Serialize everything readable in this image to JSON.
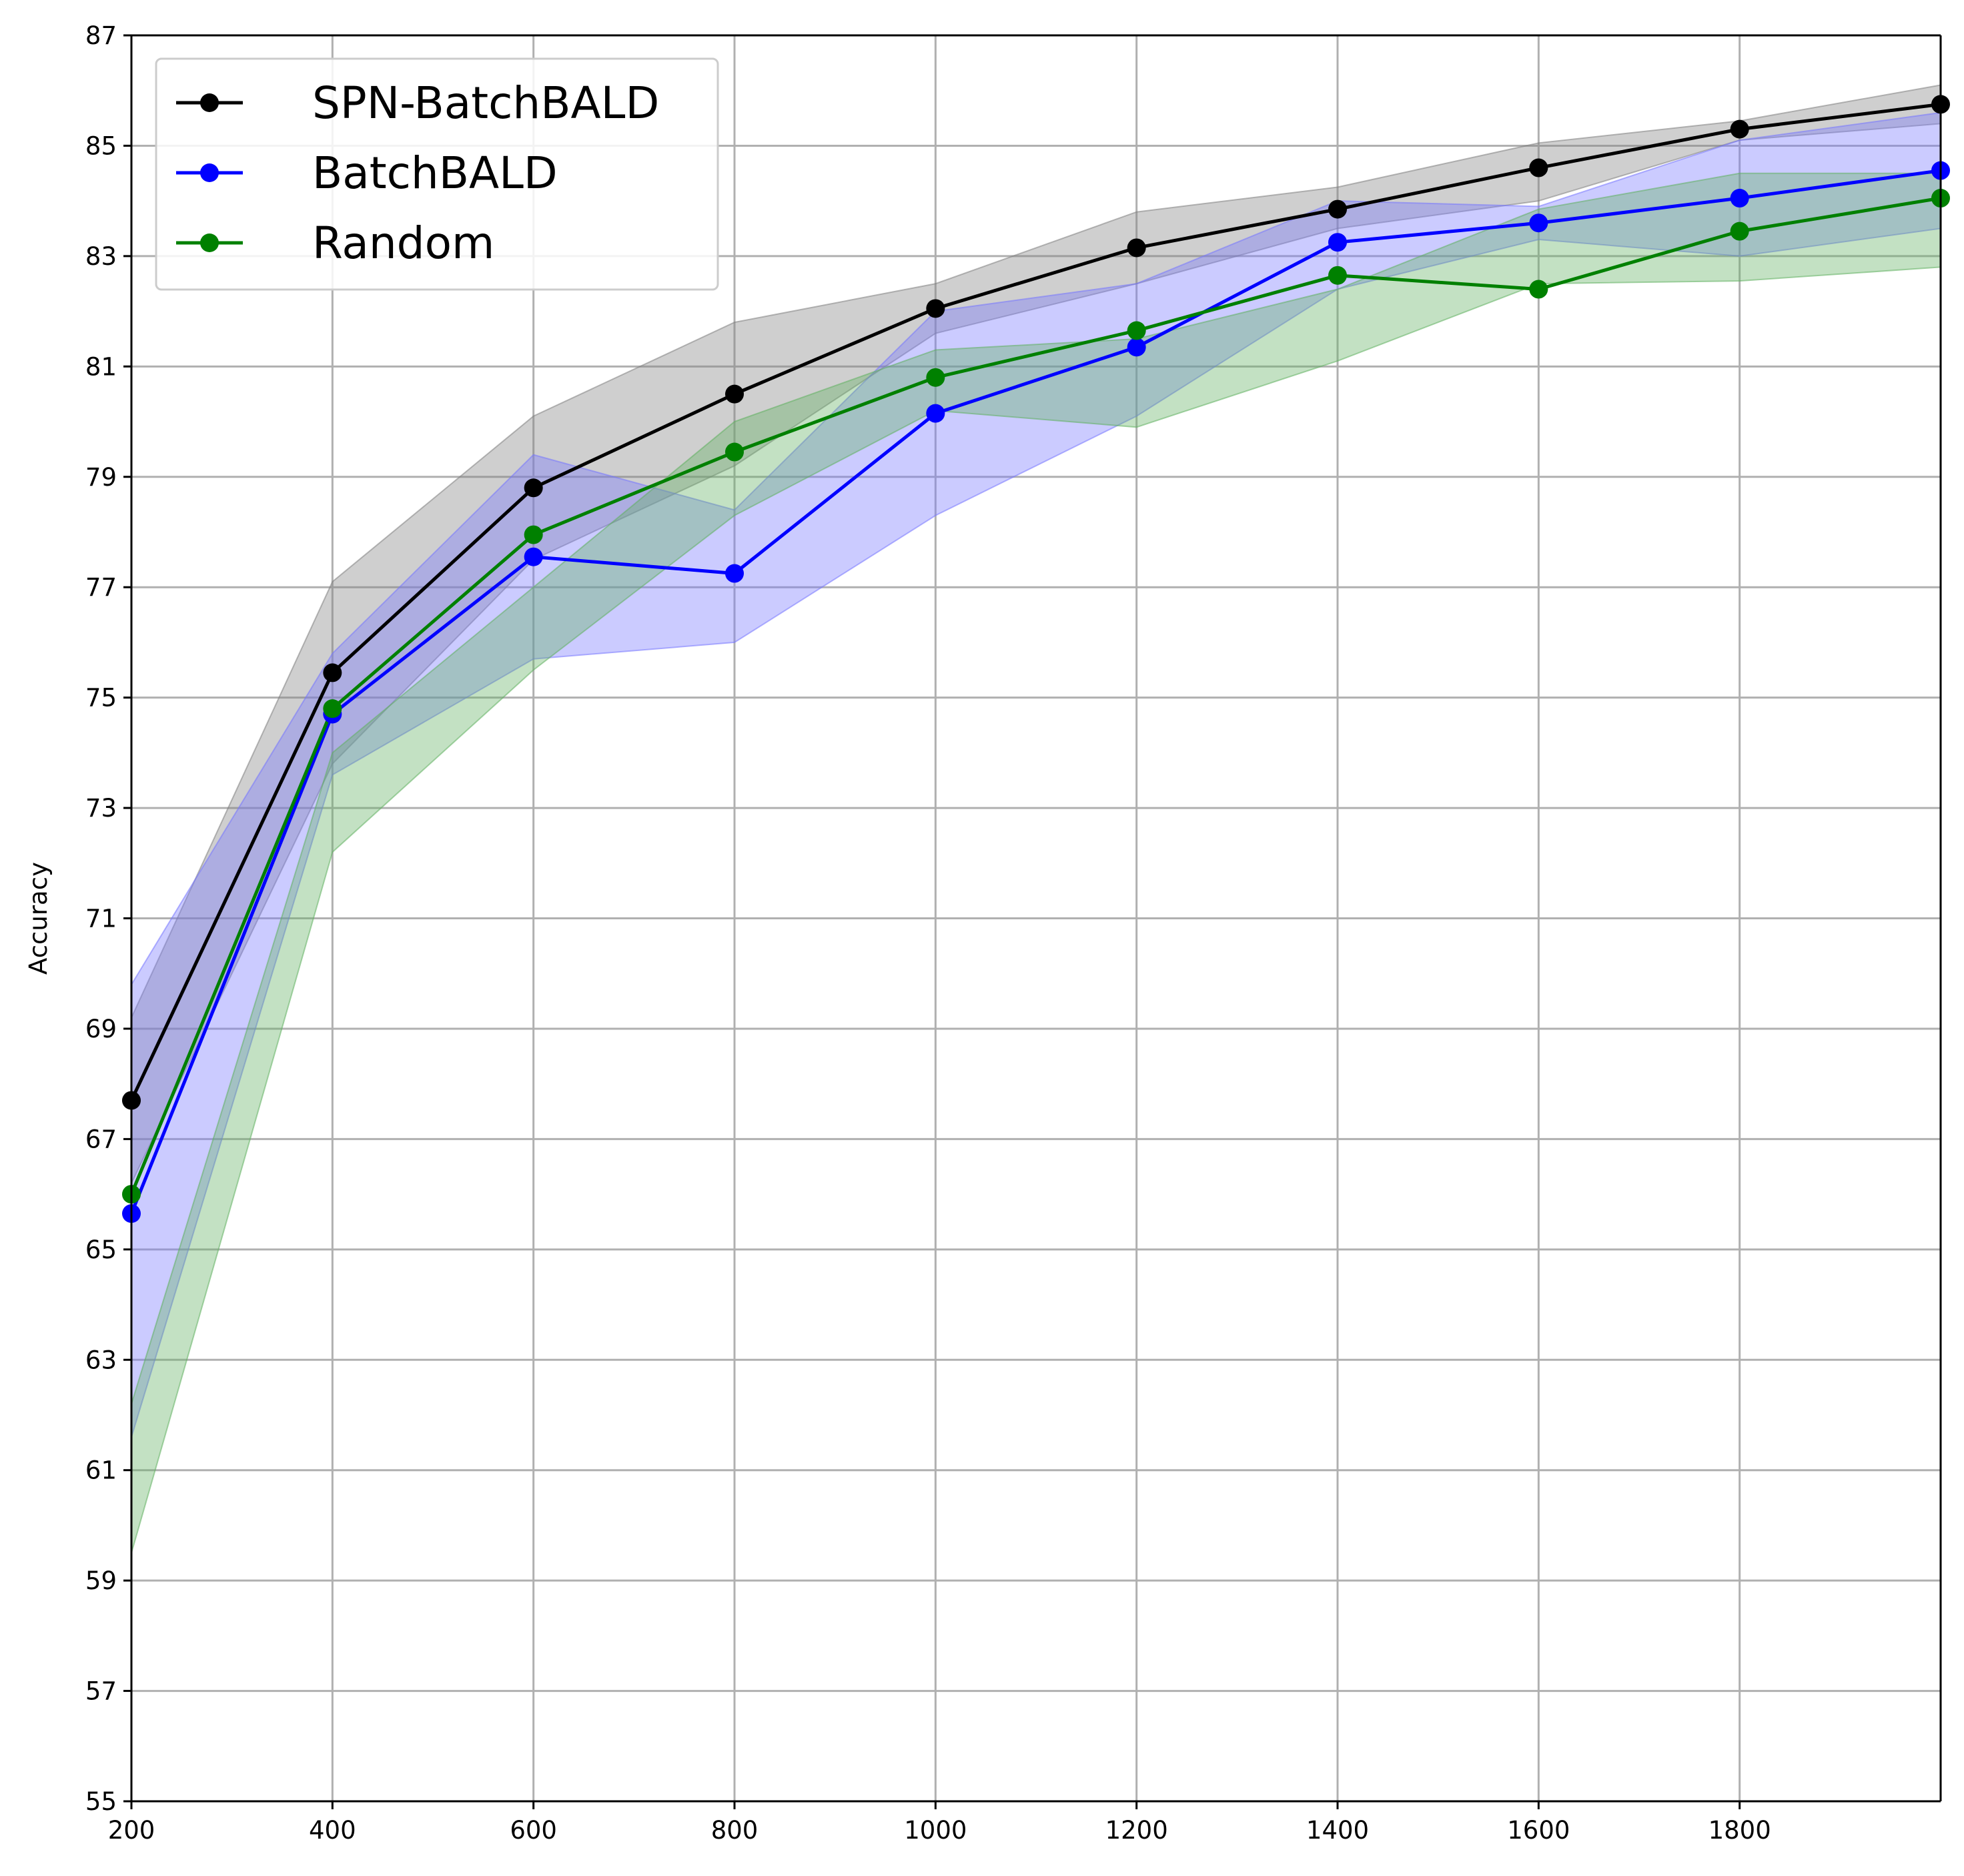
{
  "chart_data": {
    "type": "line",
    "title": "",
    "xlabel": "",
    "ylabel": "Accuracy",
    "x": [
      200,
      400,
      600,
      800,
      1000,
      1200,
      1400,
      1600,
      1800,
      2000
    ],
    "xlim": [
      200,
      2000
    ],
    "ylim": [
      55,
      87
    ],
    "xticks": [
      200,
      400,
      600,
      800,
      1000,
      1200,
      1400,
      1600,
      1800
    ],
    "yticks": [
      55,
      57,
      59,
      61,
      63,
      65,
      67,
      69,
      71,
      73,
      75,
      77,
      79,
      81,
      83,
      85,
      87
    ],
    "grid": true,
    "legend_position": "top-left",
    "series": [
      {
        "name": "SPN-BatchBALD",
        "color": "#000000",
        "band_color": "#808080",
        "values": [
          67.7,
          75.45,
          78.8,
          80.5,
          82.05,
          83.15,
          83.85,
          84.6,
          85.3,
          85.75
        ],
        "lower": [
          66.2,
          73.8,
          77.5,
          79.2,
          81.6,
          82.5,
          83.5,
          84.0,
          85.1,
          85.4
        ],
        "upper": [
          69.2,
          77.1,
          80.1,
          81.8,
          82.5,
          83.8,
          84.25,
          85.05,
          85.45,
          86.1
        ]
      },
      {
        "name": "BatchBALD",
        "color": "#0000ff",
        "band_color": "#7777ff",
        "values": [
          65.65,
          74.7,
          77.55,
          77.25,
          80.15,
          81.35,
          83.25,
          83.6,
          84.05,
          84.55
        ],
        "lower": [
          61.6,
          73.6,
          75.7,
          76.0,
          78.3,
          80.1,
          82.4,
          83.3,
          83.0,
          83.5
        ],
        "upper": [
          69.8,
          75.8,
          79.4,
          78.4,
          82.0,
          82.5,
          84.0,
          83.9,
          85.1,
          85.6
        ]
      },
      {
        "name": "Random",
        "color": "#008000",
        "band_color": "#60b060",
        "values": [
          66.0,
          74.8,
          77.95,
          79.45,
          80.8,
          81.65,
          82.65,
          82.4,
          83.45,
          84.05
        ],
        "lower": [
          59.5,
          72.2,
          75.5,
          78.3,
          80.2,
          79.9,
          81.1,
          82.5,
          82.55,
          82.8
        ],
        "upper": [
          62.2,
          74.0,
          77.0,
          80.0,
          81.3,
          81.5,
          82.4,
          83.85,
          84.5,
          84.5
        ]
      }
    ]
  }
}
